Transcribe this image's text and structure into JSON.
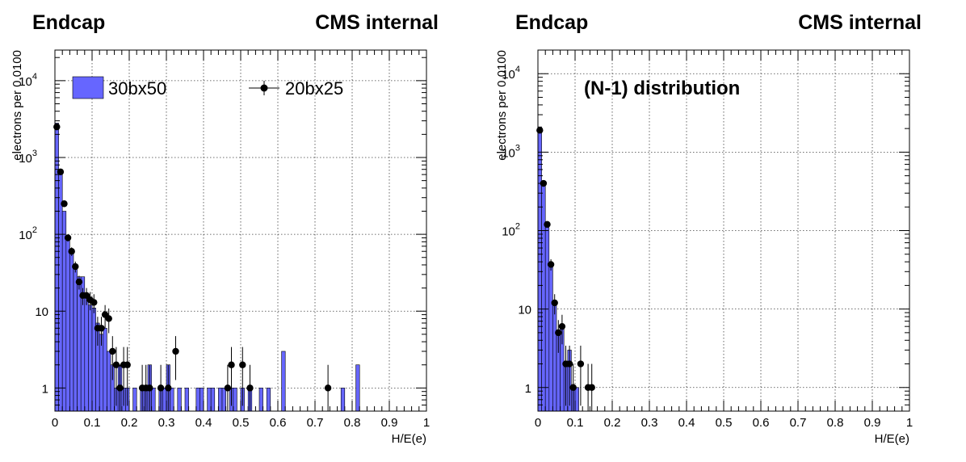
{
  "chart_data": [
    {
      "type": "histogram",
      "header_left": "Endcap",
      "header_right": "CMS internal",
      "xlabel": "H/E(e)",
      "ylabel": "electrons per 0.0100",
      "xlim": [
        0,
        1
      ],
      "ylim": [
        0.5,
        25000
      ],
      "yscale": "log",
      "grid": true,
      "x_ticks": [
        "0",
        "0.1",
        "0.2",
        "0.3",
        "0.4",
        "0.5",
        "0.6",
        "0.7",
        "0.8",
        "0.9",
        "1"
      ],
      "y_ticks": [
        {
          "value": 1,
          "base": "1",
          "exp": ""
        },
        {
          "value": 10,
          "base": "10",
          "exp": ""
        },
        {
          "value": 100,
          "base": "10",
          "exp": "2"
        },
        {
          "value": 1000,
          "base": "10",
          "exp": "3"
        },
        {
          "value": 10000,
          "base": "10",
          "exp": "4"
        }
      ],
      "annotation": "",
      "legend_placement": "top",
      "series": [
        {
          "name": "30bx50",
          "kind": "filled-histogram",
          "color": "#6666ff",
          "bin_width": 0.01,
          "bins": [
            [
              0.0,
              2800
            ],
            [
              0.01,
              700
            ],
            [
              0.02,
              200
            ],
            [
              0.03,
              90
            ],
            [
              0.04,
              60
            ],
            [
              0.05,
              40
            ],
            [
              0.06,
              28
            ],
            [
              0.07,
              28
            ],
            [
              0.08,
              15
            ],
            [
              0.09,
              12
            ],
            [
              0.1,
              11
            ],
            [
              0.11,
              7
            ],
            [
              0.12,
              5
            ],
            [
              0.13,
              6
            ],
            [
              0.14,
              3
            ],
            [
              0.15,
              2
            ],
            [
              0.16,
              1
            ],
            [
              0.17,
              2
            ],
            [
              0.18,
              1
            ],
            [
              0.19,
              1
            ],
            [
              0.21,
              1
            ],
            [
              0.23,
              1
            ],
            [
              0.24,
              1
            ],
            [
              0.25,
              2
            ],
            [
              0.26,
              1
            ],
            [
              0.28,
              1
            ],
            [
              0.29,
              1
            ],
            [
              0.3,
              2
            ],
            [
              0.31,
              1
            ],
            [
              0.33,
              1
            ],
            [
              0.35,
              1
            ],
            [
              0.38,
              1
            ],
            [
              0.39,
              1
            ],
            [
              0.41,
              1
            ],
            [
              0.42,
              1
            ],
            [
              0.44,
              1
            ],
            [
              0.45,
              1
            ],
            [
              0.47,
              1
            ],
            [
              0.48,
              1
            ],
            [
              0.5,
              1
            ],
            [
              0.52,
              1
            ],
            [
              0.55,
              1
            ],
            [
              0.57,
              1
            ],
            [
              0.61,
              3
            ],
            [
              0.77,
              1
            ],
            [
              0.81,
              2
            ]
          ]
        },
        {
          "name": "20bx25",
          "kind": "points-with-errors",
          "color": "#000000",
          "points": [
            [
              0.005,
              2500
            ],
            [
              0.015,
              650
            ],
            [
              0.025,
              250
            ],
            [
              0.035,
              90
            ],
            [
              0.045,
              60
            ],
            [
              0.055,
              38
            ],
            [
              0.065,
              24
            ],
            [
              0.075,
              16
            ],
            [
              0.085,
              16
            ],
            [
              0.095,
              14
            ],
            [
              0.105,
              13
            ],
            [
              0.115,
              6
            ],
            [
              0.125,
              6
            ],
            [
              0.135,
              9
            ],
            [
              0.145,
              8
            ],
            [
              0.155,
              3
            ],
            [
              0.165,
              2
            ],
            [
              0.175,
              1
            ],
            [
              0.185,
              2
            ],
            [
              0.195,
              2
            ],
            [
              0.235,
              1
            ],
            [
              0.245,
              1
            ],
            [
              0.255,
              1
            ],
            [
              0.285,
              1
            ],
            [
              0.305,
              1
            ],
            [
              0.325,
              3
            ],
            [
              0.465,
              1
            ],
            [
              0.475,
              2
            ],
            [
              0.505,
              2
            ],
            [
              0.525,
              1
            ],
            [
              0.735,
              1
            ]
          ]
        }
      ]
    },
    {
      "type": "histogram",
      "header_left": "Endcap",
      "header_right": "CMS internal",
      "xlabel": "H/E(e)",
      "ylabel": "electrons per 0.0100",
      "xlim": [
        0,
        1
      ],
      "ylim": [
        0.5,
        20000
      ],
      "yscale": "log",
      "grid": true,
      "x_ticks": [
        "0",
        "0.1",
        "0.2",
        "0.3",
        "0.4",
        "0.5",
        "0.6",
        "0.7",
        "0.8",
        "0.9",
        "1"
      ],
      "y_ticks": [
        {
          "value": 1,
          "base": "1",
          "exp": ""
        },
        {
          "value": 10,
          "base": "10",
          "exp": ""
        },
        {
          "value": 100,
          "base": "10",
          "exp": "2"
        },
        {
          "value": 1000,
          "base": "10",
          "exp": "3"
        },
        {
          "value": 10000,
          "base": "10",
          "exp": "4"
        }
      ],
      "annotation": "(N-1) distribution",
      "series": [
        {
          "name": "30bx50",
          "kind": "filled-histogram",
          "color": "#6666ff",
          "bin_width": 0.01,
          "bins": [
            [
              0.0,
              2100
            ],
            [
              0.01,
              400
            ],
            [
              0.02,
              110
            ],
            [
              0.03,
              35
            ],
            [
              0.04,
              12
            ],
            [
              0.05,
              5
            ],
            [
              0.06,
              6
            ],
            [
              0.07,
              2
            ],
            [
              0.08,
              3
            ],
            [
              0.09,
              1
            ],
            [
              0.1,
              1
            ]
          ]
        },
        {
          "name": "20bx25",
          "kind": "points-with-errors",
          "color": "#000000",
          "points": [
            [
              0.005,
              1900
            ],
            [
              0.015,
              400
            ],
            [
              0.025,
              120
            ],
            [
              0.035,
              37
            ],
            [
              0.045,
              12
            ],
            [
              0.055,
              5
            ],
            [
              0.065,
              6
            ],
            [
              0.075,
              2
            ],
            [
              0.085,
              2
            ],
            [
              0.095,
              1
            ],
            [
              0.115,
              2
            ],
            [
              0.135,
              1
            ],
            [
              0.145,
              1
            ]
          ]
        }
      ]
    }
  ]
}
